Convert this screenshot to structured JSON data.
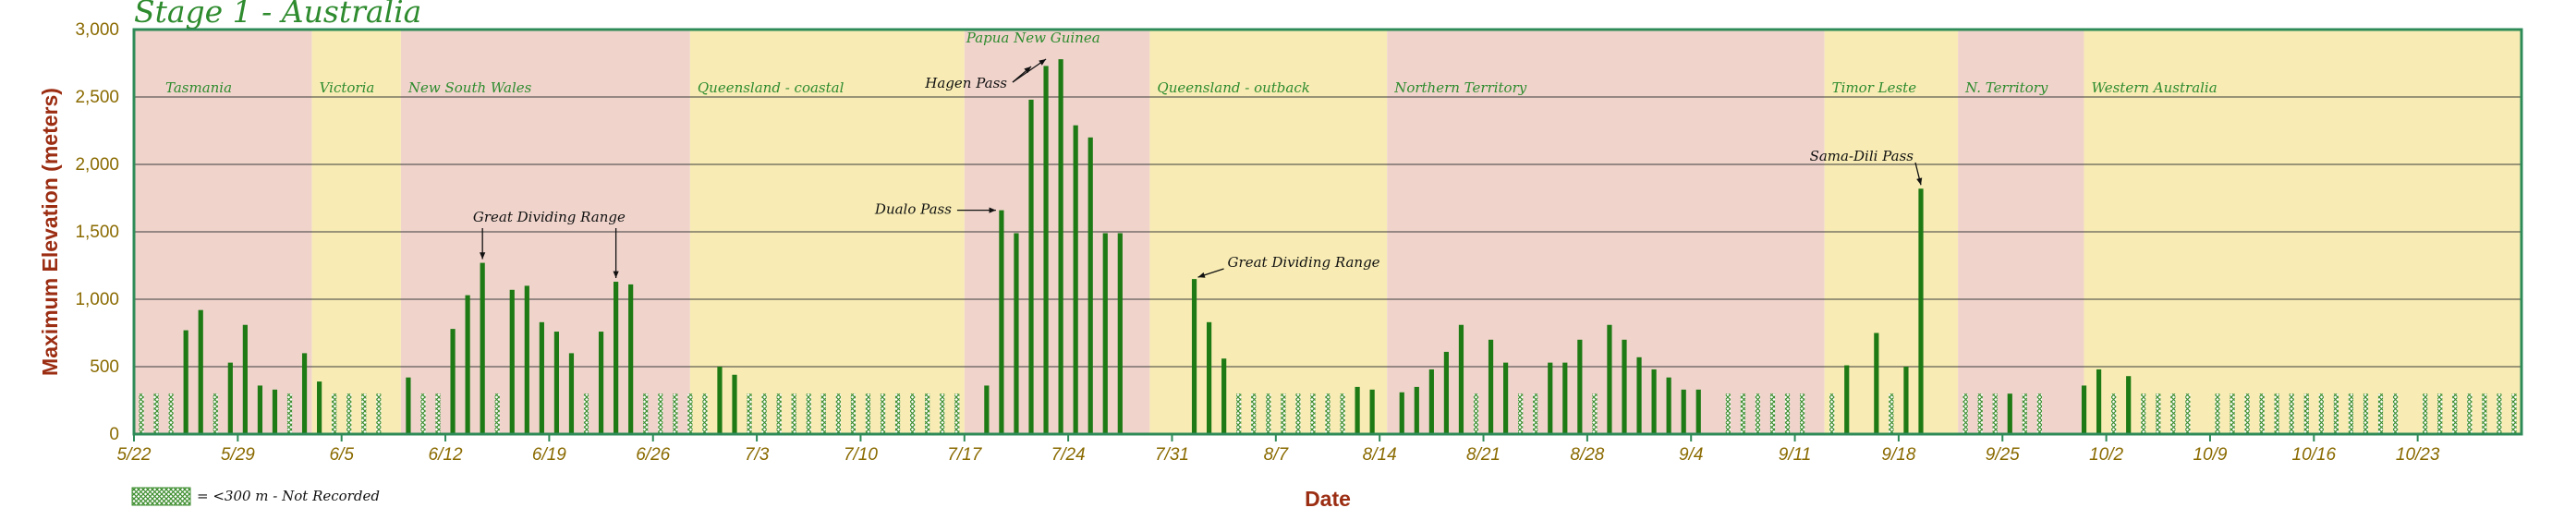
{
  "chart_data": {
    "type": "bar",
    "title": "Stage 1 - Australia",
    "xlabel": "Date",
    "ylabel": "Maximum Elevation (meters)",
    "ylim": [
      0,
      3000
    ],
    "yticks": [
      0,
      500,
      1000,
      1500,
      2000,
      2500,
      3000
    ],
    "ytick_labels": [
      "0",
      "500",
      "1,000",
      "1,500",
      "2,000",
      "2,500",
      "3,000"
    ],
    "x_start_date": "2024-05-22",
    "xticks": [
      {
        "day": 0,
        "label": "5/22"
      },
      {
        "day": 7,
        "label": "5/29"
      },
      {
        "day": 14,
        "label": "6/5"
      },
      {
        "day": 21,
        "label": "6/12"
      },
      {
        "day": 28,
        "label": "6/19"
      },
      {
        "day": 35,
        "label": "6/26"
      },
      {
        "day": 42,
        "label": "7/3"
      },
      {
        "day": 49,
        "label": "7/10"
      },
      {
        "day": 56,
        "label": "7/17"
      },
      {
        "day": 63,
        "label": "7/24"
      },
      {
        "day": 70,
        "label": "7/31"
      },
      {
        "day": 77,
        "label": "8/7"
      },
      {
        "day": 84,
        "label": "8/14"
      },
      {
        "day": 91,
        "label": "8/21"
      },
      {
        "day": 98,
        "label": "8/28"
      },
      {
        "day": 105,
        "label": "9/4"
      },
      {
        "day": 112,
        "label": "9/11"
      },
      {
        "day": 119,
        "label": "9/18"
      },
      {
        "day": 126,
        "label": "9/25"
      },
      {
        "day": 133,
        "label": "10/2"
      },
      {
        "day": 140,
        "label": "10/9"
      },
      {
        "day": 147,
        "label": "10/16"
      },
      {
        "day": 154,
        "label": "10/23"
      }
    ],
    "regions": [
      {
        "name": "Tasmania",
        "start": 0,
        "end": 12,
        "color": "#f0d4cc"
      },
      {
        "name": "Victoria",
        "start": 12,
        "end": 18,
        "color": "#f8ecb4"
      },
      {
        "name": "New South Wales",
        "start": 18,
        "end": 37.5,
        "color": "#f0d4cc"
      },
      {
        "name": "Queensland - coastal",
        "start": 37.5,
        "end": 56,
        "color": "#f8ecb4"
      },
      {
        "name": "Papua New Guinea",
        "start": 56,
        "end": 68.5,
        "color": "#f0d4cc"
      },
      {
        "name": "Queensland - outback",
        "start": 68.5,
        "end": 84.5,
        "color": "#f8ecb4"
      },
      {
        "name": "Northern Territory",
        "start": 84.5,
        "end": 114,
        "color": "#f0d4cc"
      },
      {
        "name": "Timor Leste",
        "start": 114,
        "end": 123,
        "color": "#f8ecb4"
      },
      {
        "name": "N. Territory",
        "start": 123,
        "end": 131.5,
        "color": "#f0d4cc"
      },
      {
        "name": "Western Australia",
        "start": 131.5,
        "end": 161,
        "color": "#f8ecb4"
      }
    ],
    "colors": {
      "bar": "#1e7a14",
      "not_recorded": "#7ab06a",
      "frame": "#2e8b57"
    },
    "bars": [
      {
        "day": 0,
        "v": 300,
        "nr": true
      },
      {
        "day": 1,
        "v": 300,
        "nr": true
      },
      {
        "day": 2,
        "v": 300,
        "nr": true
      },
      {
        "day": 3,
        "v": 770
      },
      {
        "day": 4,
        "v": 920
      },
      {
        "day": 5,
        "v": 300,
        "nr": true
      },
      {
        "day": 6,
        "v": 530
      },
      {
        "day": 7,
        "v": 810
      },
      {
        "day": 8,
        "v": 360
      },
      {
        "day": 9,
        "v": 330
      },
      {
        "day": 10,
        "v": 300,
        "nr": true
      },
      {
        "day": 11,
        "v": 600
      },
      {
        "day": 12,
        "v": 390
      },
      {
        "day": 13,
        "v": 300,
        "nr": true
      },
      {
        "day": 14,
        "v": 300,
        "nr": true
      },
      {
        "day": 15,
        "v": 300,
        "nr": true
      },
      {
        "day": 16,
        "v": 300,
        "nr": true
      },
      {
        "day": 18,
        "v": 420
      },
      {
        "day": 19,
        "v": 300,
        "nr": true
      },
      {
        "day": 20,
        "v": 300,
        "nr": true
      },
      {
        "day": 21,
        "v": 780
      },
      {
        "day": 22,
        "v": 1030
      },
      {
        "day": 23,
        "v": 1270
      },
      {
        "day": 24,
        "v": 300,
        "nr": true
      },
      {
        "day": 25,
        "v": 1070
      },
      {
        "day": 26,
        "v": 1100
      },
      {
        "day": 27,
        "v": 830
      },
      {
        "day": 28,
        "v": 760
      },
      {
        "day": 29,
        "v": 600
      },
      {
        "day": 30,
        "v": 300,
        "nr": true
      },
      {
        "day": 31,
        "v": 760
      },
      {
        "day": 32,
        "v": 1130
      },
      {
        "day": 33,
        "v": 1110
      },
      {
        "day": 34,
        "v": 300,
        "nr": true
      },
      {
        "day": 35,
        "v": 300,
        "nr": true
      },
      {
        "day": 36,
        "v": 300,
        "nr": true
      },
      {
        "day": 37,
        "v": 300,
        "nr": true
      },
      {
        "day": 38,
        "v": 300,
        "nr": true
      },
      {
        "day": 39,
        "v": 500
      },
      {
        "day": 40,
        "v": 440
      },
      {
        "day": 41,
        "v": 300,
        "nr": true
      },
      {
        "day": 42,
        "v": 300,
        "nr": true
      },
      {
        "day": 43,
        "v": 300,
        "nr": true
      },
      {
        "day": 44,
        "v": 300,
        "nr": true
      },
      {
        "day": 45,
        "v": 300,
        "nr": true
      },
      {
        "day": 46,
        "v": 300,
        "nr": true
      },
      {
        "day": 47,
        "v": 300,
        "nr": true
      },
      {
        "day": 48,
        "v": 300,
        "nr": true
      },
      {
        "day": 49,
        "v": 300,
        "nr": true
      },
      {
        "day": 50,
        "v": 300,
        "nr": true
      },
      {
        "day": 51,
        "v": 300,
        "nr": true
      },
      {
        "day": 52,
        "v": 300,
        "nr": true
      },
      {
        "day": 53,
        "v": 300,
        "nr": true
      },
      {
        "day": 54,
        "v": 300,
        "nr": true
      },
      {
        "day": 55,
        "v": 300,
        "nr": true
      },
      {
        "day": 57,
        "v": 360
      },
      {
        "day": 58,
        "v": 1660
      },
      {
        "day": 59,
        "v": 1490
      },
      {
        "day": 60,
        "v": 2480
      },
      {
        "day": 61,
        "v": 2730
      },
      {
        "day": 62,
        "v": 2780
      },
      {
        "day": 63,
        "v": 2290
      },
      {
        "day": 64,
        "v": 2200
      },
      {
        "day": 65,
        "v": 1490
      },
      {
        "day": 66,
        "v": 1490
      },
      {
        "day": 71,
        "v": 1150
      },
      {
        "day": 72,
        "v": 830
      },
      {
        "day": 73,
        "v": 560
      },
      {
        "day": 74,
        "v": 300,
        "nr": true
      },
      {
        "day": 75,
        "v": 300,
        "nr": true
      },
      {
        "day": 76,
        "v": 300,
        "nr": true
      },
      {
        "day": 77,
        "v": 300,
        "nr": true
      },
      {
        "day": 78,
        "v": 300,
        "nr": true
      },
      {
        "day": 79,
        "v": 300,
        "nr": true
      },
      {
        "day": 80,
        "v": 300,
        "nr": true
      },
      {
        "day": 81,
        "v": 300,
        "nr": true
      },
      {
        "day": 82,
        "v": 350
      },
      {
        "day": 83,
        "v": 330
      },
      {
        "day": 85,
        "v": 310
      },
      {
        "day": 86,
        "v": 350
      },
      {
        "day": 87,
        "v": 480
      },
      {
        "day": 88,
        "v": 610
      },
      {
        "day": 89,
        "v": 810
      },
      {
        "day": 90,
        "v": 300,
        "nr": true
      },
      {
        "day": 91,
        "v": 700
      },
      {
        "day": 92,
        "v": 530
      },
      {
        "day": 93,
        "v": 300,
        "nr": true
      },
      {
        "day": 94,
        "v": 300,
        "nr": true
      },
      {
        "day": 95,
        "v": 530
      },
      {
        "day": 96,
        "v": 530
      },
      {
        "day": 97,
        "v": 700
      },
      {
        "day": 98,
        "v": 300,
        "nr": true
      },
      {
        "day": 99,
        "v": 810
      },
      {
        "day": 100,
        "v": 700
      },
      {
        "day": 101,
        "v": 570
      },
      {
        "day": 102,
        "v": 480
      },
      {
        "day": 103,
        "v": 420
      },
      {
        "day": 104,
        "v": 330
      },
      {
        "day": 105,
        "v": 330
      },
      {
        "day": 107,
        "v": 300,
        "nr": true
      },
      {
        "day": 108,
        "v": 300,
        "nr": true
      },
      {
        "day": 109,
        "v": 300,
        "nr": true
      },
      {
        "day": 110,
        "v": 300,
        "nr": true
      },
      {
        "day": 111,
        "v": 300,
        "nr": true
      },
      {
        "day": 112,
        "v": 300,
        "nr": true
      },
      {
        "day": 114,
        "v": 300,
        "nr": true
      },
      {
        "day": 115,
        "v": 510
      },
      {
        "day": 117,
        "v": 750
      },
      {
        "day": 118,
        "v": 300,
        "nr": true
      },
      {
        "day": 119,
        "v": 500
      },
      {
        "day": 120,
        "v": 1820
      },
      {
        "day": 123,
        "v": 300,
        "nr": true
      },
      {
        "day": 124,
        "v": 300,
        "nr": true
      },
      {
        "day": 125,
        "v": 300,
        "nr": true
      },
      {
        "day": 126,
        "v": 300
      },
      {
        "day": 127,
        "v": 300,
        "nr": true
      },
      {
        "day": 128,
        "v": 300,
        "nr": true
      },
      {
        "day": 131,
        "v": 360
      },
      {
        "day": 132,
        "v": 480
      },
      {
        "day": 133,
        "v": 300,
        "nr": true
      },
      {
        "day": 134,
        "v": 430
      },
      {
        "day": 135,
        "v": 300,
        "nr": true
      },
      {
        "day": 136,
        "v": 300,
        "nr": true
      },
      {
        "day": 137,
        "v": 300,
        "nr": true
      },
      {
        "day": 138,
        "v": 300,
        "nr": true
      },
      {
        "day": 140,
        "v": 300,
        "nr": true
      },
      {
        "day": 141,
        "v": 300,
        "nr": true
      },
      {
        "day": 142,
        "v": 300,
        "nr": true
      },
      {
        "day": 143,
        "v": 300,
        "nr": true
      },
      {
        "day": 144,
        "v": 300,
        "nr": true
      },
      {
        "day": 145,
        "v": 300,
        "nr": true
      },
      {
        "day": 146,
        "v": 300,
        "nr": true
      },
      {
        "day": 147,
        "v": 300,
        "nr": true
      },
      {
        "day": 148,
        "v": 300,
        "nr": true
      },
      {
        "day": 149,
        "v": 300,
        "nr": true
      },
      {
        "day": 150,
        "v": 300,
        "nr": true
      },
      {
        "day": 151,
        "v": 300,
        "nr": true
      },
      {
        "day": 152,
        "v": 300,
        "nr": true
      },
      {
        "day": 154,
        "v": 300,
        "nr": true
      },
      {
        "day": 155,
        "v": 300,
        "nr": true
      },
      {
        "day": 156,
        "v": 300,
        "nr": true
      },
      {
        "day": 157,
        "v": 300,
        "nr": true
      },
      {
        "day": 158,
        "v": 300,
        "nr": true
      },
      {
        "day": 159,
        "v": 300,
        "nr": true
      },
      {
        "day": 160,
        "v": 300,
        "nr": true
      }
    ],
    "annotations": [
      {
        "text": "Great Dividing Range",
        "targets": [
          23,
          32
        ]
      },
      {
        "text": "Hagen Pass",
        "targets": [
          60,
          61
        ]
      },
      {
        "text": "Dualo Pass",
        "targets": [
          58
        ]
      },
      {
        "text": "Great Dividing Range",
        "targets": [
          71
        ]
      },
      {
        "text": "Sama-Dili Pass",
        "targets": [
          120
        ]
      }
    ],
    "legend": {
      "label": "= <300 m - Not Recorded"
    }
  }
}
